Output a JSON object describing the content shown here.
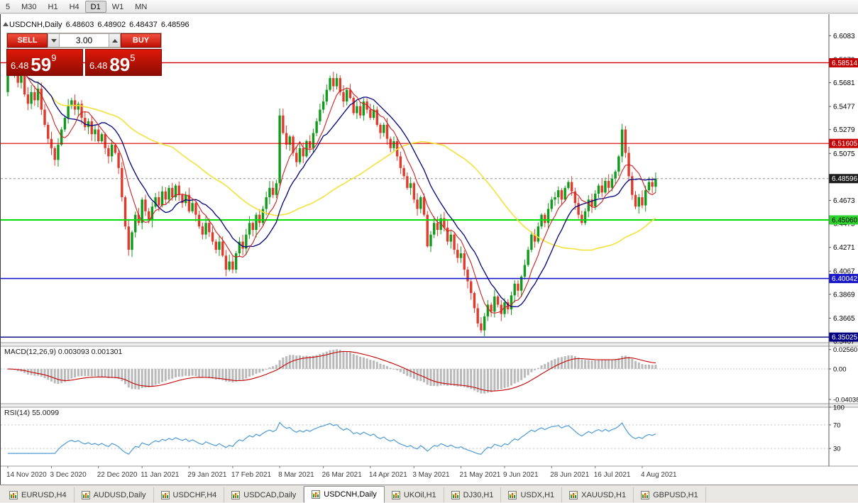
{
  "toolbar": {
    "periods": [
      {
        "label": "5",
        "active": false
      },
      {
        "label": "M30",
        "active": false
      },
      {
        "label": "H1",
        "active": false
      },
      {
        "label": "H4",
        "active": false
      },
      {
        "label": "D1",
        "active": true
      },
      {
        "label": "W1",
        "active": false
      },
      {
        "label": "MN",
        "active": false
      }
    ]
  },
  "ohlc_readout": {
    "symbol": "USDCNH,Daily",
    "open": "6.48603",
    "high": "6.48902",
    "low": "6.48437",
    "close": "6.48596"
  },
  "trade_panel": {
    "sell_label": "SELL",
    "buy_label": "BUY",
    "volume": "3.00",
    "sell_price": {
      "prefix": "6.48",
      "big": "59",
      "sup": "9"
    },
    "buy_price": {
      "prefix": "6.48",
      "big": "89",
      "sup": "5"
    }
  },
  "price_axis": {
    "ticks": [
      {
        "label": "6.6083",
        "price": 6.6083
      },
      {
        "label": "6.5879",
        "price": 6.5879
      },
      {
        "label": "6.5681",
        "price": 6.5681
      },
      {
        "label": "6.5477",
        "price": 6.5477
      },
      {
        "label": "6.5279",
        "price": 6.5279
      },
      {
        "label": "6.5075",
        "price": 6.5075
      },
      {
        "label": "6.4877",
        "price": 6.4877
      },
      {
        "label": "6.4673",
        "price": 6.4673
      },
      {
        "label": "6.4475",
        "price": 6.4475
      },
      {
        "label": "6.4271",
        "price": 6.4271
      },
      {
        "label": "6.4067",
        "price": 6.4067
      },
      {
        "label": "6.3869",
        "price": 6.3869
      },
      {
        "label": "6.3665",
        "price": 6.3665
      },
      {
        "label": "6.3467",
        "price": 6.3467
      }
    ],
    "badges": [
      {
        "label": "6.58514",
        "price": 6.58514,
        "bg": "#c40000",
        "fg": "#ffffff"
      },
      {
        "label": "6.51605",
        "price": 6.51605,
        "bg": "#c40000",
        "fg": "#ffffff"
      },
      {
        "label": "6.48596",
        "price": 6.48596,
        "bg": "#1c1c1c",
        "fg": "#ffffff"
      },
      {
        "label": "6.45060",
        "price": 6.4506,
        "bg": "#2fd32f",
        "fg": "#000000"
      },
      {
        "label": "6.40042",
        "price": 6.40042,
        "bg": "#1818c8",
        "fg": "#ffffff"
      },
      {
        "label": "6.35025",
        "price": 6.35025,
        "bg": "#000080",
        "fg": "#ffffff"
      }
    ]
  },
  "indicator_panels": {
    "macd": {
      "title": "MACD(12,26,9) 0.003093 0.001301",
      "axis": [
        {
          "label": "0.02560",
          "value": 0.0256
        },
        {
          "label": "0.00",
          "value": 0
        },
        {
          "label": "-0.04038",
          "value": -0.04038
        }
      ]
    },
    "rsi": {
      "title": "RSI(14) 55.0099",
      "axis": [
        {
          "label": "100",
          "value": 100
        },
        {
          "label": "70",
          "value": 70
        },
        {
          "label": "30",
          "value": 30
        }
      ]
    }
  },
  "date_axis": {
    "labels": [
      "14 Nov 2020",
      "3 Dec 2020",
      "22 Dec 2020",
      "11 Jan 2021",
      "29 Jan 2021",
      "17 Feb 2021",
      "8 Mar 2021",
      "26 Mar 2021",
      "14 Apr 2021",
      "3 May 2021",
      "21 May 2021",
      "9 Jun 2021",
      "28 Jun 2021",
      "16 Jul 2021",
      "4 Aug 2021"
    ],
    "indices": [
      0,
      13,
      27,
      40,
      54,
      67,
      81,
      94,
      108,
      121,
      135,
      148,
      162,
      175,
      189
    ]
  },
  "tabs": [
    {
      "label": "EURUSD,H4",
      "active": false
    },
    {
      "label": "AUDUSD,Daily",
      "active": false
    },
    {
      "label": "USDCHF,H4",
      "active": false
    },
    {
      "label": "USDCAD,Daily",
      "active": false
    },
    {
      "label": "USDCNH,Daily",
      "active": true
    },
    {
      "label": "UKOil,H1",
      "active": false
    },
    {
      "label": "DJ30,H1",
      "active": false
    },
    {
      "label": "USDX,H1",
      "active": false
    },
    {
      "label": "XAUUSD,H1",
      "active": false
    },
    {
      "label": "GBPUSD,H1",
      "active": false
    }
  ],
  "chart_data": {
    "type": "candlestick",
    "symbol": "USDCNH",
    "timeframe": "Daily",
    "price_range": [
      6.3455,
      6.6255
    ],
    "first_open": 6.56,
    "closes": [
      6.592,
      6.578,
      6.585,
      6.568,
      6.575,
      6.558,
      6.55,
      6.56,
      6.553,
      6.563,
      6.545,
      6.532,
      6.52,
      6.512,
      6.502,
      6.515,
      6.528,
      6.538,
      6.548,
      6.553,
      6.545,
      6.55,
      6.538,
      6.53,
      6.535,
      6.524,
      6.528,
      6.518,
      6.524,
      6.512,
      6.505,
      6.515,
      6.508,
      6.495,
      6.47,
      6.445,
      6.425,
      6.44,
      6.455,
      6.448,
      6.468,
      6.458,
      6.45,
      6.462,
      6.47,
      6.463,
      6.475,
      6.468,
      6.478,
      6.47,
      6.48,
      6.472,
      6.465,
      6.472,
      6.458,
      6.465,
      6.455,
      6.445,
      6.438,
      6.448,
      6.44,
      6.432,
      6.425,
      6.432,
      6.42,
      6.408,
      6.415,
      6.408,
      6.422,
      6.432,
      6.426,
      6.438,
      6.448,
      6.442,
      6.455,
      6.448,
      6.46,
      6.47,
      6.478,
      6.472,
      6.482,
      6.54,
      6.525,
      6.515,
      6.522,
      6.508,
      6.5,
      6.512,
      6.505,
      6.518,
      6.512,
      6.525,
      6.535,
      6.545,
      6.552,
      6.562,
      6.572,
      6.565,
      6.572,
      6.56,
      6.552,
      6.562,
      6.555,
      6.542,
      6.548,
      6.54,
      6.552,
      6.545,
      6.538,
      6.545,
      6.532,
      6.525,
      6.532,
      6.52,
      6.512,
      6.518,
      6.505,
      6.495,
      6.488,
      6.478,
      6.482,
      6.468,
      6.46,
      6.47,
      6.455,
      6.428,
      6.438,
      6.448,
      6.442,
      6.452,
      6.444,
      6.432,
      6.438,
      6.425,
      6.418,
      6.422,
      6.408,
      6.398,
      6.388,
      6.375,
      6.362,
      6.356,
      6.368,
      6.378,
      6.372,
      6.385,
      6.378,
      6.37,
      6.38,
      6.374,
      6.386,
      6.396,
      6.39,
      6.402,
      6.412,
      6.425,
      6.438,
      6.432,
      6.445,
      6.455,
      6.448,
      6.46,
      6.468,
      6.47,
      6.476,
      6.468,
      6.478,
      6.483,
      6.475,
      6.465,
      6.455,
      6.448,
      6.458,
      6.468,
      6.462,
      6.473,
      6.48,
      6.474,
      6.484,
      6.478,
      6.486,
      6.492,
      6.505,
      6.528,
      6.508,
      6.488,
      6.472,
      6.462,
      6.47,
      6.463,
      6.476,
      6.483,
      6.479,
      6.48596
    ],
    "last_price": 6.48596,
    "candle_colors": {
      "up": "#119b1b",
      "down": "#e03a2d"
    },
    "overlays": [
      {
        "name": "ma-slow",
        "color": "#f2e23c",
        "period": 50,
        "width": 1.6
      },
      {
        "name": "ma-mid",
        "color": "#00007f",
        "period": 14,
        "width": 1.3
      },
      {
        "name": "ma-fast",
        "color": "#cc1f1f",
        "period": 7,
        "width": 1.1
      }
    ],
    "levels": [
      {
        "price": 6.58514,
        "color": "#d40000",
        "width": 1.4,
        "dash": ""
      },
      {
        "price": 6.51605,
        "color": "#d40000",
        "width": 1.2,
        "dash": ""
      },
      {
        "price": 6.48596,
        "color": "#909090",
        "width": 1,
        "dash": "3,3"
      },
      {
        "price": 6.4506,
        "color": "#00dd00",
        "width": 2,
        "dash": ""
      },
      {
        "price": 6.40042,
        "color": "#1818c8",
        "width": 1.6,
        "dash": ""
      },
      {
        "price": 6.35025,
        "color": "#000080",
        "width": 1.4,
        "dash": ""
      }
    ],
    "indicators": {
      "macd": {
        "fast": 12,
        "slow": 26,
        "signal": 9,
        "histogram_color": "#b9b9b9",
        "signal_color": "#c40000",
        "range": [
          -0.046,
          0.03
        ]
      },
      "rsi": {
        "period": 14,
        "color": "#4f9bd5",
        "levels": [
          30,
          70
        ],
        "range": [
          0,
          100
        ]
      }
    }
  }
}
